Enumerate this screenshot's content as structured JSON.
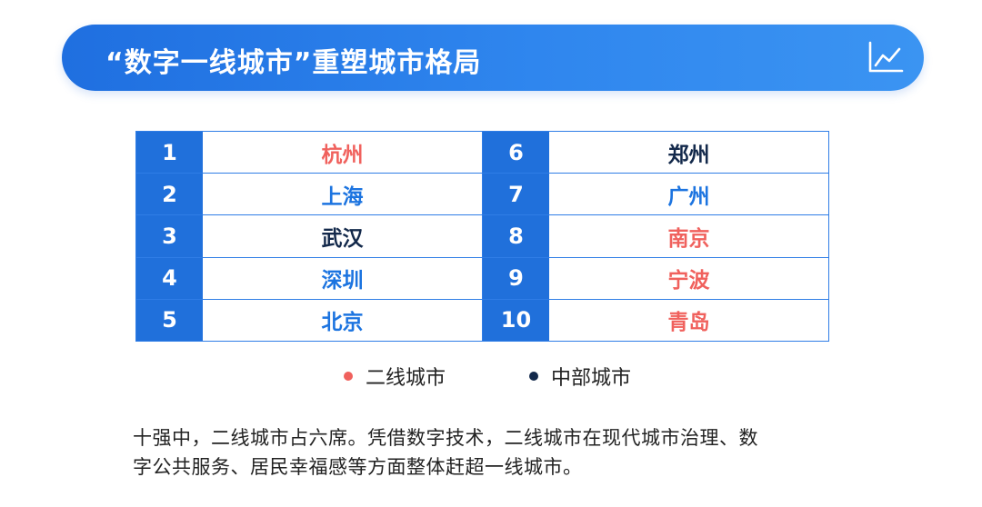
{
  "header": {
    "title": "“数字一线城市”重塑城市格局",
    "icon": "line-chart-icon"
  },
  "colors": {
    "banner": "#2a7fe8",
    "table_border": "#2f7de6",
    "rank_cell": "#2070db",
    "second_tier_city": "#f0615d",
    "central_city": "#13294b",
    "other_city": "#1c74e0"
  },
  "ranking": {
    "left": [
      {
        "rank": "1",
        "city": "杭州",
        "type": "second-tier"
      },
      {
        "rank": "2",
        "city": "上海",
        "type": "other"
      },
      {
        "rank": "3",
        "city": "武汉",
        "type": "central"
      },
      {
        "rank": "4",
        "city": "深圳",
        "type": "other"
      },
      {
        "rank": "5",
        "city": "北京",
        "type": "other"
      }
    ],
    "right": [
      {
        "rank": "6",
        "city": "郑州",
        "type": "central"
      },
      {
        "rank": "7",
        "city": "广州",
        "type": "other"
      },
      {
        "rank": "8",
        "city": "南京",
        "type": "second-tier"
      },
      {
        "rank": "9",
        "city": "宁波",
        "type": "second-tier"
      },
      {
        "rank": "10",
        "city": "青岛",
        "type": "second-tier"
      }
    ]
  },
  "legend": {
    "second_tier": "二线城市",
    "central": "中部城市"
  },
  "note": {
    "line1": "十强中，二线城市占六席。凭借数字技术，二线城市在现代城市治理、数",
    "line2": "字公共服务、居民幸福感等方面整体赶超一线城市。"
  }
}
